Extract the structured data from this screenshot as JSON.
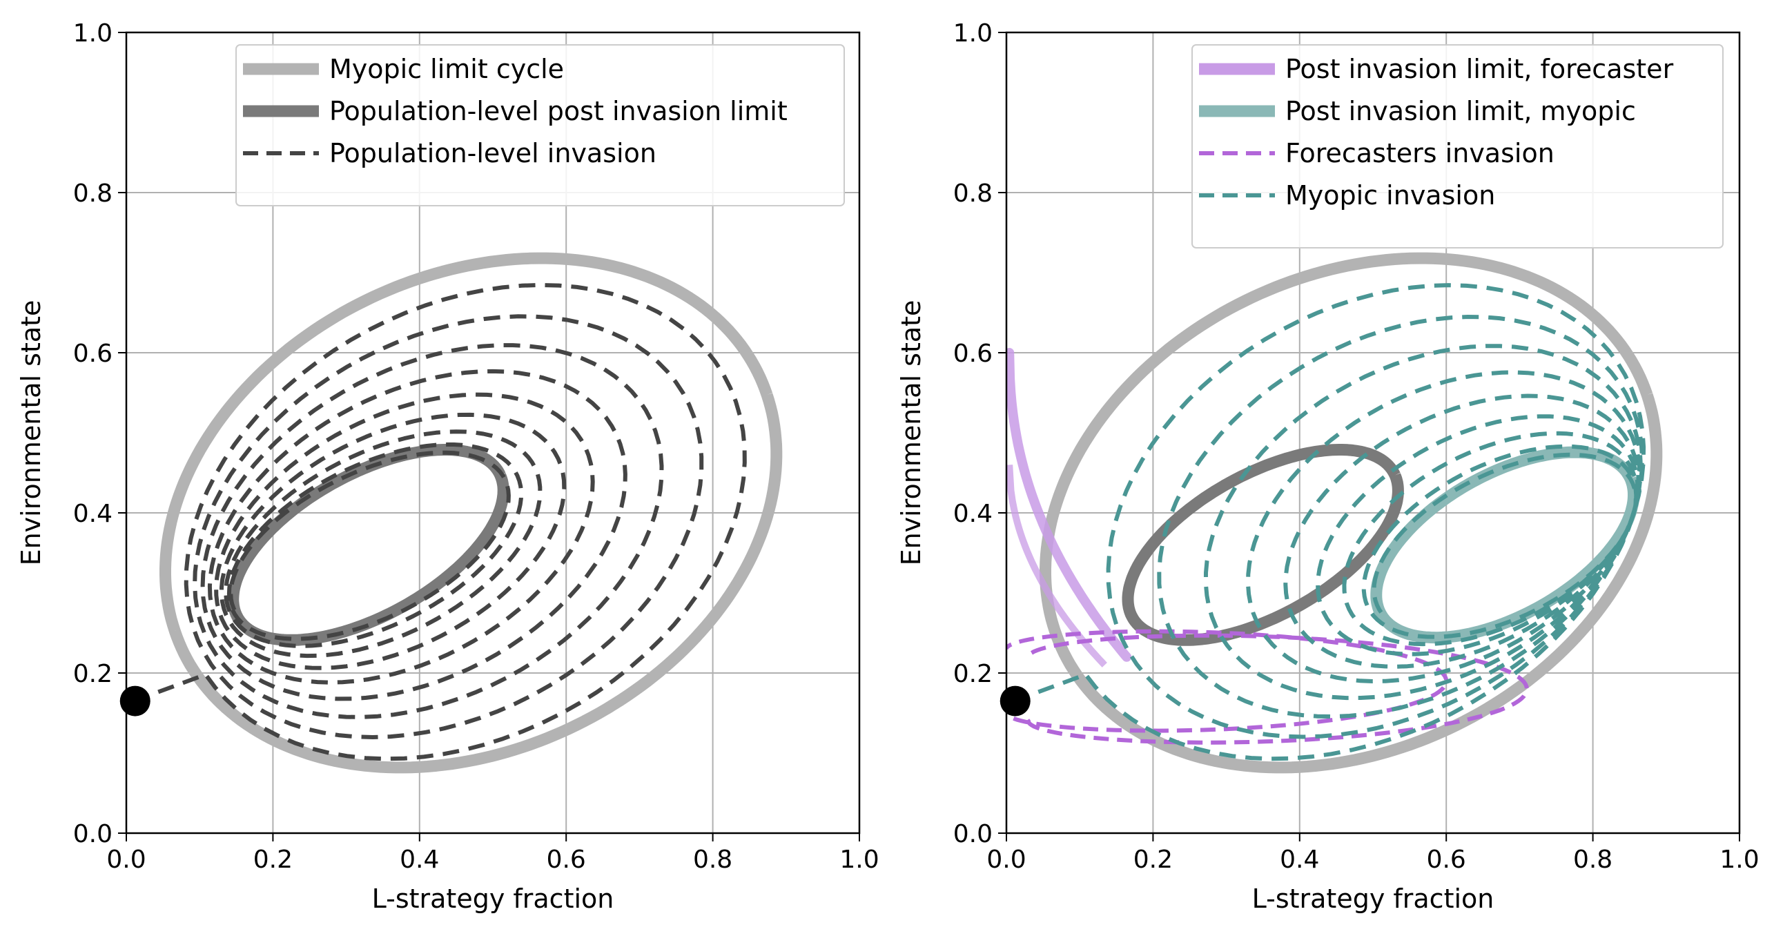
{
  "colors": {
    "myopic_limit_cycle": "#b3b3b3",
    "population_post_invasion_limit": "#7a7a7a",
    "population_invasion": "#444444",
    "forecaster_limit": "#c89be6",
    "myopic_post_limit": "#8ab8b6",
    "forecaster_invasion": "#b266d9",
    "myopic_invasion": "#4a9694",
    "start_point": "#000000",
    "grid": "#b0b0b0"
  },
  "chart_data": [
    {
      "type": "line",
      "xlabel": "L-strategy fraction",
      "ylabel": "Environmental state",
      "xlim": [
        0.0,
        1.0
      ],
      "ylim": [
        0.0,
        1.0
      ],
      "xticks": [
        "0.0",
        "0.2",
        "0.4",
        "0.6",
        "0.8",
        "1.0"
      ],
      "yticks": [
        "0.0",
        "0.2",
        "0.4",
        "0.6",
        "0.8",
        "1.0"
      ],
      "grid": true,
      "legend_position": "top-right",
      "legend": [
        {
          "label": "Myopic limit cycle",
          "style": "thick-solid",
          "color_key": "myopic_limit_cycle"
        },
        {
          "label": "Population-level post invasion limit",
          "style": "thick-solid",
          "color_key": "population_post_invasion_limit"
        },
        {
          "label": "Population-level invasion",
          "style": "dashed",
          "color_key": "population_invasion"
        }
      ],
      "series": [
        {
          "name": "Myopic limit cycle",
          "kind": "limit-cycle",
          "center": [
            0.47,
            0.4
          ],
          "rx": 0.43,
          "ry": 0.3,
          "tilt": 0.35,
          "color_key": "myopic_limit_cycle"
        },
        {
          "name": "Population-level post invasion limit",
          "kind": "limit-cycle",
          "center": [
            0.33,
            0.36
          ],
          "rx": 0.2,
          "ry": 0.09,
          "tilt": 0.45,
          "color_key": "population_post_invasion_limit"
        },
        {
          "name": "Population-level invasion",
          "kind": "spiral-in",
          "start": [
            0.01,
            0.165
          ],
          "from_center": [
            0.47,
            0.4
          ],
          "to_center": [
            0.33,
            0.36
          ],
          "turns": 9,
          "color_key": "population_invasion"
        }
      ],
      "start_point": [
        0.012,
        0.165
      ]
    },
    {
      "type": "line",
      "xlabel": "L-strategy fraction",
      "ylabel": "Environmental state",
      "xlim": [
        0.0,
        1.0
      ],
      "ylim": [
        0.0,
        1.0
      ],
      "xticks": [
        "0.0",
        "0.2",
        "0.4",
        "0.6",
        "0.8",
        "1.0"
      ],
      "yticks": [
        "0.0",
        "0.2",
        "0.4",
        "0.6",
        "0.8",
        "1.0"
      ],
      "grid": true,
      "legend_position": "top-right",
      "legend": [
        {
          "label": "Post invasion limit, forecaster",
          "style": "thick-solid",
          "color_key": "forecaster_limit"
        },
        {
          "label": "Post invasion limit, myopic",
          "style": "thick-solid",
          "color_key": "myopic_post_limit"
        },
        {
          "label": "Forecasters invasion",
          "style": "dashed",
          "color_key": "forecaster_invasion"
        },
        {
          "label": "Myopic invasion",
          "style": "dashed",
          "color_key": "myopic_invasion"
        }
      ],
      "series": [
        {
          "name": "Myopic limit cycle",
          "kind": "limit-cycle",
          "center": [
            0.47,
            0.4
          ],
          "rx": 0.43,
          "ry": 0.3,
          "tilt": 0.35,
          "color_key": "myopic_limit_cycle"
        },
        {
          "name": "Population-level post invasion limit",
          "kind": "limit-cycle",
          "center": [
            0.35,
            0.36
          ],
          "rx": 0.2,
          "ry": 0.09,
          "tilt": 0.45,
          "color_key": "population_post_invasion_limit"
        },
        {
          "name": "Post invasion limit, myopic",
          "kind": "limit-cycle",
          "center": [
            0.68,
            0.36
          ],
          "rx": 0.19,
          "ry": 0.09,
          "tilt": 0.45,
          "color_key": "myopic_post_limit"
        },
        {
          "name": "Myopic invasion",
          "kind": "spiral-in",
          "start": [
            0.01,
            0.165
          ],
          "from_center": [
            0.47,
            0.4
          ],
          "to_center": [
            0.68,
            0.36
          ],
          "turns": 9,
          "color_key": "myopic_invasion"
        },
        {
          "name": "Forecasters invasion",
          "kind": "transient",
          "start": [
            0.01,
            0.165
          ],
          "color_key": "forecaster_invasion"
        },
        {
          "name": "Post invasion limit, forecaster",
          "kind": "collapse-to-axis",
          "color_key": "forecaster_limit"
        }
      ],
      "start_point": [
        0.012,
        0.165
      ]
    }
  ]
}
